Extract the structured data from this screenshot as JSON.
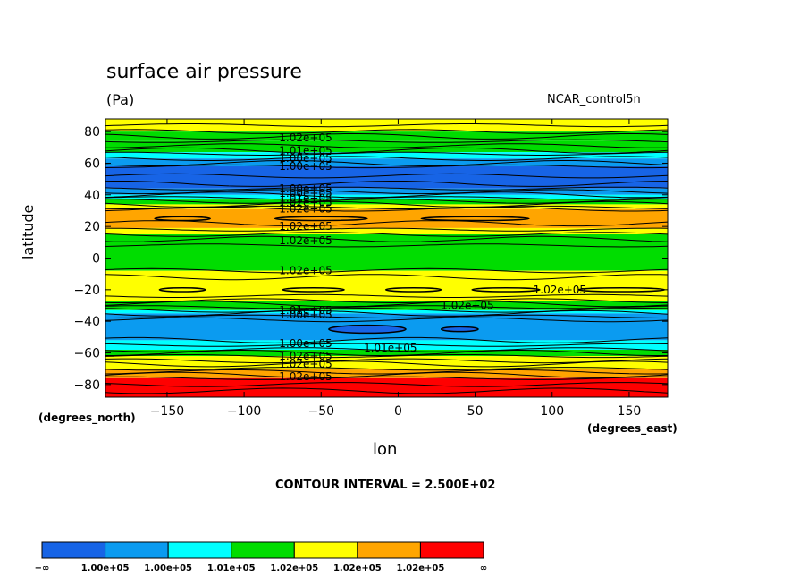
{
  "chart_data": {
    "type": "contour",
    "title": "surface air pressure",
    "units": "(Pa)",
    "run_name": "NCAR_control5n",
    "ylabel": "latitude",
    "ylabel_units": "(degrees_north)",
    "xlabel": "lon",
    "xlabel_units": "(degrees_east)",
    "contour_interval_text": "CONTOUR INTERVAL = 2.500E+02",
    "xlim": [
      -190,
      175
    ],
    "ylim": [
      -88,
      88
    ],
    "x_ticks": [
      -150,
      -100,
      -50,
      0,
      50,
      100,
      150
    ],
    "x_tick_labels": [
      "−150",
      "−100",
      "−50",
      "0",
      "50",
      "100",
      "150"
    ],
    "y_ticks": [
      80,
      60,
      40,
      20,
      0,
      -20,
      -40,
      -60,
      -80
    ],
    "y_tick_labels": [
      "80",
      "60",
      "40",
      "20",
      "0",
      "−20",
      "−40",
      "−60",
      "−80"
    ],
    "bands": [
      {
        "lat_from": 88,
        "lat_to": 80,
        "color": "#ffff00"
      },
      {
        "lat_from": 80,
        "lat_to": 74,
        "color": "#00dd00"
      },
      {
        "lat_from": 74,
        "lat_to": 67,
        "color": "#00dd00"
      },
      {
        "lat_from": 67,
        "lat_to": 63,
        "color": "#00ffff"
      },
      {
        "lat_from": 63,
        "lat_to": 58,
        "color": "#0b9bf0"
      },
      {
        "lat_from": 58,
        "lat_to": 44,
        "color": "#1764e6"
      },
      {
        "lat_from": 44,
        "lat_to": 40,
        "color": "#0b9bf0"
      },
      {
        "lat_from": 40,
        "lat_to": 37,
        "color": "#00ffff"
      },
      {
        "lat_from": 37,
        "lat_to": 34,
        "color": "#00dd00"
      },
      {
        "lat_from": 34,
        "lat_to": 31,
        "color": "#ffff00"
      },
      {
        "lat_from": 31,
        "lat_to": 19,
        "color": "#ffa500"
      },
      {
        "lat_from": 19,
        "lat_to": 15,
        "color": "#ffff00"
      },
      {
        "lat_from": 15,
        "lat_to": -8,
        "color": "#00dd00"
      },
      {
        "lat_from": -8,
        "lat_to": -27,
        "color": "#ffff00"
      },
      {
        "lat_from": -27,
        "lat_to": -33,
        "color": "#00dd00"
      },
      {
        "lat_from": -33,
        "lat_to": -35,
        "color": "#00ffff"
      },
      {
        "lat_from": -35,
        "lat_to": -52,
        "color": "#0b9bf0"
      },
      {
        "lat_from": -52,
        "lat_to": -58,
        "color": "#00ffff"
      },
      {
        "lat_from": -58,
        "lat_to": -62,
        "color": "#00dd00"
      },
      {
        "lat_from": -62,
        "lat_to": -70,
        "color": "#ffff00"
      },
      {
        "lat_from": -70,
        "lat_to": -76,
        "color": "#ffa500"
      },
      {
        "lat_from": -76,
        "lat_to": -88,
        "color": "#ff0000"
      }
    ],
    "contour_lats": [
      84,
      80,
      77,
      74,
      71,
      68,
      66,
      63,
      60,
      58,
      52,
      47,
      44,
      42,
      40,
      38,
      36,
      34,
      32,
      31,
      22,
      18,
      15,
      12,
      8,
      -8,
      -12,
      -24,
      -27,
      -29,
      -31,
      -33,
      -35,
      -37,
      -39,
      -52,
      -55,
      -58,
      -60,
      -62,
      -65,
      -67,
      -70,
      -72,
      -74,
      -76,
      -80,
      -84
    ],
    "closed_contours": [
      {
        "lon": -140,
        "lat": 25,
        "half_width_lon": 18,
        "half_height_lat": 1.2
      },
      {
        "lon": -50,
        "lat": 25,
        "half_width_lon": 30,
        "half_height_lat": 1.2
      },
      {
        "lon": 50,
        "lat": 25,
        "half_width_lon": 35,
        "half_height_lat": 1.2
      },
      {
        "lon": -140,
        "lat": -20,
        "half_width_lon": 15,
        "half_height_lat": 1.2
      },
      {
        "lon": -55,
        "lat": -20,
        "half_width_lon": 20,
        "half_height_lat": 1.2
      },
      {
        "lon": 10,
        "lat": -20,
        "half_width_lon": 18,
        "half_height_lat": 1.2
      },
      {
        "lon": 70,
        "lat": -20,
        "half_width_lon": 22,
        "half_height_lat": 1.2
      },
      {
        "lon": 145,
        "lat": -20,
        "half_width_lon": 28,
        "half_height_lat": 1.2
      },
      {
        "lon": -20,
        "lat": -45,
        "half_width_lon": 25,
        "half_height_lat": 2.5,
        "fill": "#1764e6"
      },
      {
        "lon": 40,
        "lat": -45,
        "half_width_lon": 12,
        "half_height_lat": 1.5,
        "fill": "#1764e6"
      }
    ],
    "contour_labels": [
      {
        "text": "1.02e+05",
        "lon": -60,
        "lat": 76
      },
      {
        "text": "1.01e+05",
        "lon": -60,
        "lat": 68
      },
      {
        "text": "1.00e+05",
        "lon": -60,
        "lat": 63
      },
      {
        "text": "1.00e+05",
        "lon": -60,
        "lat": 58
      },
      {
        "text": "1.00e+05",
        "lon": -60,
        "lat": 44
      },
      {
        "text": "1.00e+05",
        "lon": -60,
        "lat": 41
      },
      {
        "text": "1.01e+05",
        "lon": -60,
        "lat": 38
      },
      {
        "text": "1.02e+05",
        "lon": -60,
        "lat": 35
      },
      {
        "text": "1.02e+05",
        "lon": -60,
        "lat": 31
      },
      {
        "text": "1.02e+05",
        "lon": -60,
        "lat": 20
      },
      {
        "text": "1.02e+05",
        "lon": -60,
        "lat": 11
      },
      {
        "text": "1.02e+05",
        "lon": -60,
        "lat": -8
      },
      {
        "text": "1.02e+05",
        "lon": 105,
        "lat": -20
      },
      {
        "text": "1.02e+05",
        "lon": 45,
        "lat": -30
      },
      {
        "text": "1.01e+05",
        "lon": -60,
        "lat": -33
      },
      {
        "text": "1.00e+05",
        "lon": -60,
        "lat": -36
      },
      {
        "text": "1.00e+05",
        "lon": -60,
        "lat": -54
      },
      {
        "text": "1.01e+05",
        "lon": -5,
        "lat": -57
      },
      {
        "text": "1.02e+05",
        "lon": -60,
        "lat": -62
      },
      {
        "text": "1.02e+05",
        "lon": -60,
        "lat": -67
      },
      {
        "text": "1.02e+05",
        "lon": -60,
        "lat": -75
      }
    ],
    "colorbar": {
      "colors": [
        "#1764e6",
        "#0b9bf0",
        "#00ffff",
        "#00dd00",
        "#ffff00",
        "#ffa500",
        "#ff0000"
      ],
      "labels": [
        "−∞",
        "1.00e+05",
        "1.00e+05",
        "1.01e+05",
        "1.02e+05",
        "1.02e+05",
        "1.02e+05",
        "∞"
      ]
    }
  }
}
